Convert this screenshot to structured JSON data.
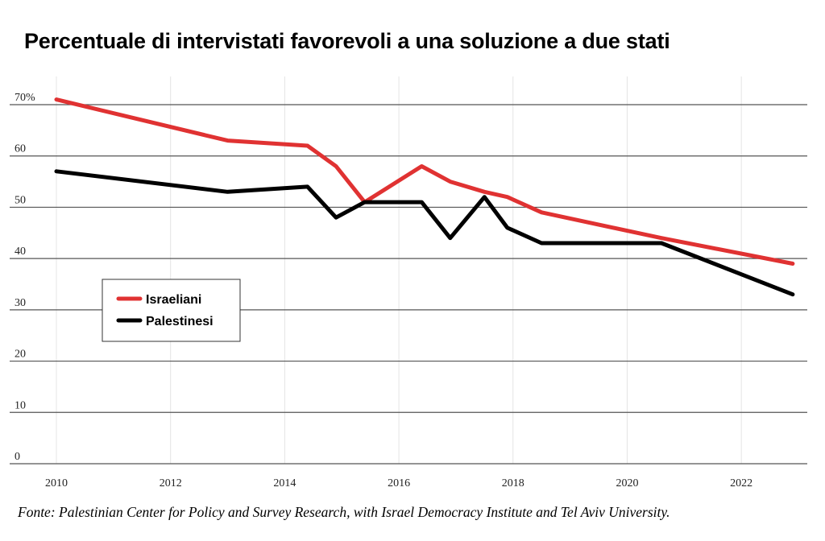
{
  "title": "Percentuale di intervistati favorevoli a una soluzione a due stati",
  "source": "Fonte: Palestinian Center for Policy and Survey Research, with Israel Democracy Institute and Tel Aviv University.",
  "chart_data": {
    "type": "line",
    "title": "Percentuale di intervistati favorevoli a una soluzione a due stati",
    "xlabel": "",
    "ylabel": "",
    "xlim": [
      2010,
      2023
    ],
    "ylim": [
      0,
      70
    ],
    "x_ticks": [
      2010,
      2012,
      2014,
      2016,
      2018,
      2020,
      2022
    ],
    "x_tick_labels": [
      "2010",
      "2012",
      "2014",
      "2016",
      "2018",
      "2020",
      "2022"
    ],
    "y_ticks": [
      0,
      10,
      20,
      30,
      40,
      50,
      60,
      70
    ],
    "y_tick_labels": [
      "0",
      "10",
      "20",
      "30",
      "40",
      "50",
      "60",
      "70%"
    ],
    "grid": "horizontal",
    "legend_position": "middle-left",
    "series": [
      {
        "name": "Israeliani",
        "color": "#e03232",
        "x": [
          2010,
          2013,
          2014.4,
          2014.9,
          2015.4,
          2016.4,
          2016.9,
          2017.5,
          2017.9,
          2018.5,
          2020.6,
          2022.9
        ],
        "y": [
          71,
          63,
          62,
          58,
          51,
          58,
          55,
          53,
          52,
          49,
          44,
          39
        ]
      },
      {
        "name": "Palestinesi",
        "color": "#000000",
        "x": [
          2010,
          2013,
          2014.4,
          2014.9,
          2015.4,
          2016.4,
          2016.9,
          2017.5,
          2017.9,
          2018.5,
          2020.6,
          2022.9
        ],
        "y": [
          57,
          53,
          54,
          48,
          51,
          51,
          44,
          52,
          46,
          43,
          43,
          33
        ]
      }
    ]
  }
}
